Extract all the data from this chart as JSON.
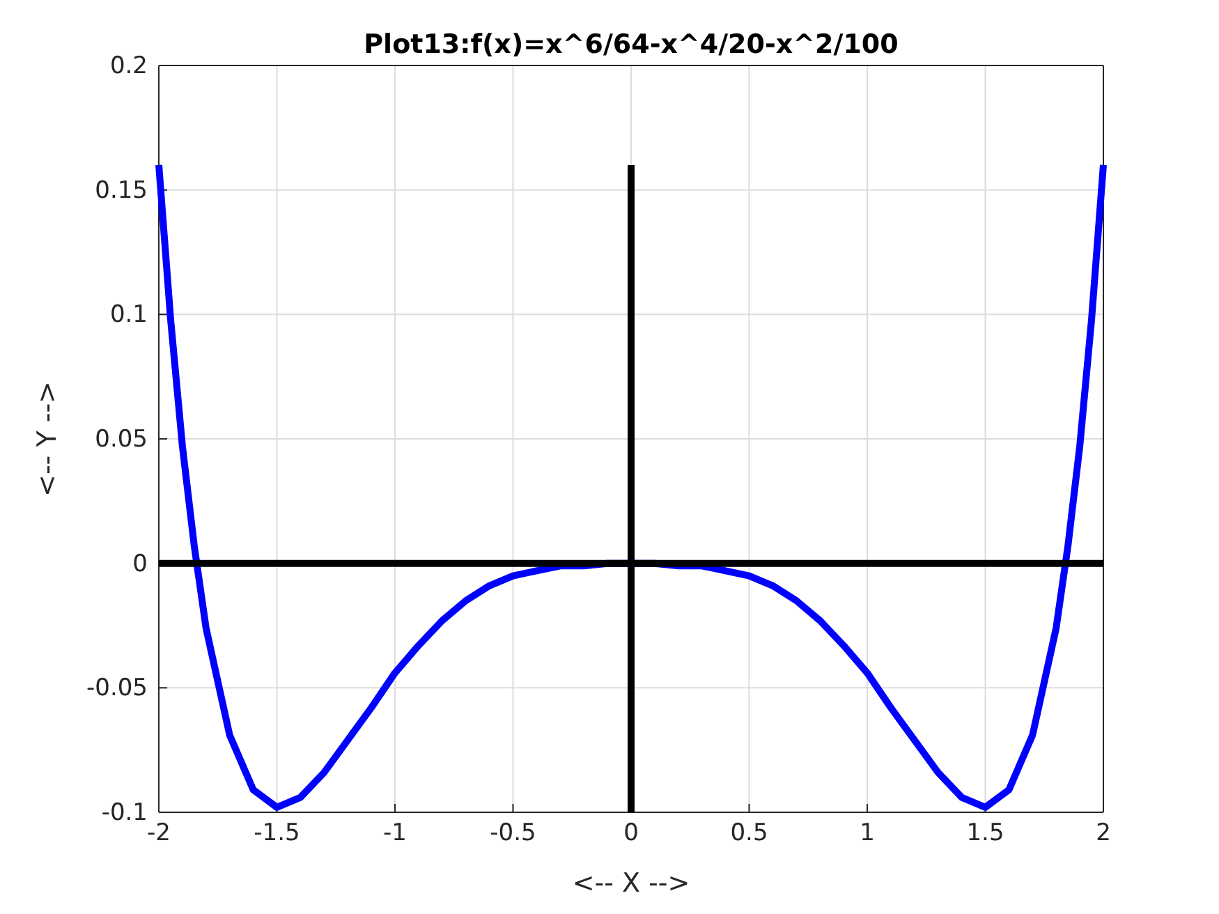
{
  "chart_data": {
    "type": "line",
    "title": "Plot13:f(x)=x^6/64-x^4/20-x^2/100",
    "xlabel": "<-- X -->",
    "ylabel": "<-- Y -->",
    "xlim": [
      -2,
      2
    ],
    "ylim": [
      -0.1,
      0.2
    ],
    "xticks": [
      -2,
      -1.5,
      -1,
      -0.5,
      0,
      0.5,
      1,
      1.5,
      2
    ],
    "yticks": [
      -0.1,
      -0.05,
      0,
      0.05,
      0.1,
      0.15,
      0.2
    ],
    "grid": true,
    "line_style": "solid",
    "series": [
      {
        "color": "#0000ff",
        "x": [
          -2,
          -1.95,
          -1.9,
          -1.85,
          -1.8,
          -1.7,
          -1.6,
          -1.5,
          -1.4,
          -1.3,
          -1.2,
          -1.1,
          -1,
          -0.9,
          -0.8,
          -0.7,
          -0.6,
          -0.5,
          -0.4,
          -0.3,
          -0.2,
          -0.1,
          0,
          0.1,
          0.2,
          0.3,
          0.4,
          0.5,
          0.6,
          0.7,
          0.8,
          0.9,
          1,
          1.1,
          1.2,
          1.3,
          1.4,
          1.5,
          1.6,
          1.7,
          1.8,
          1.85,
          1.9,
          1.95,
          2
        ],
        "values": [
          0.16,
          0.098,
          0.047,
          0.007,
          -0.026,
          -0.069,
          -0.091,
          -0.098,
          -0.094,
          -0.084,
          -0.071,
          -0.058,
          -0.044,
          -0.033,
          -0.023,
          -0.015,
          -0.009,
          -0.005,
          -0.003,
          -0.001,
          -0.001,
          0,
          0,
          0,
          -0.001,
          -0.001,
          -0.003,
          -0.005,
          -0.009,
          -0.015,
          -0.023,
          -0.033,
          -0.044,
          -0.058,
          -0.071,
          -0.084,
          -0.094,
          -0.098,
          -0.091,
          -0.069,
          -0.026,
          0.007,
          0.047,
          0.098,
          0.16
        ]
      },
      {
        "color": "#000000",
        "x": [
          -2,
          2
        ],
        "values": [
          0,
          0
        ]
      },
      {
        "color": "#000000",
        "x": [
          0,
          0
        ],
        "values": [
          -0.1,
          0.16
        ]
      }
    ]
  }
}
